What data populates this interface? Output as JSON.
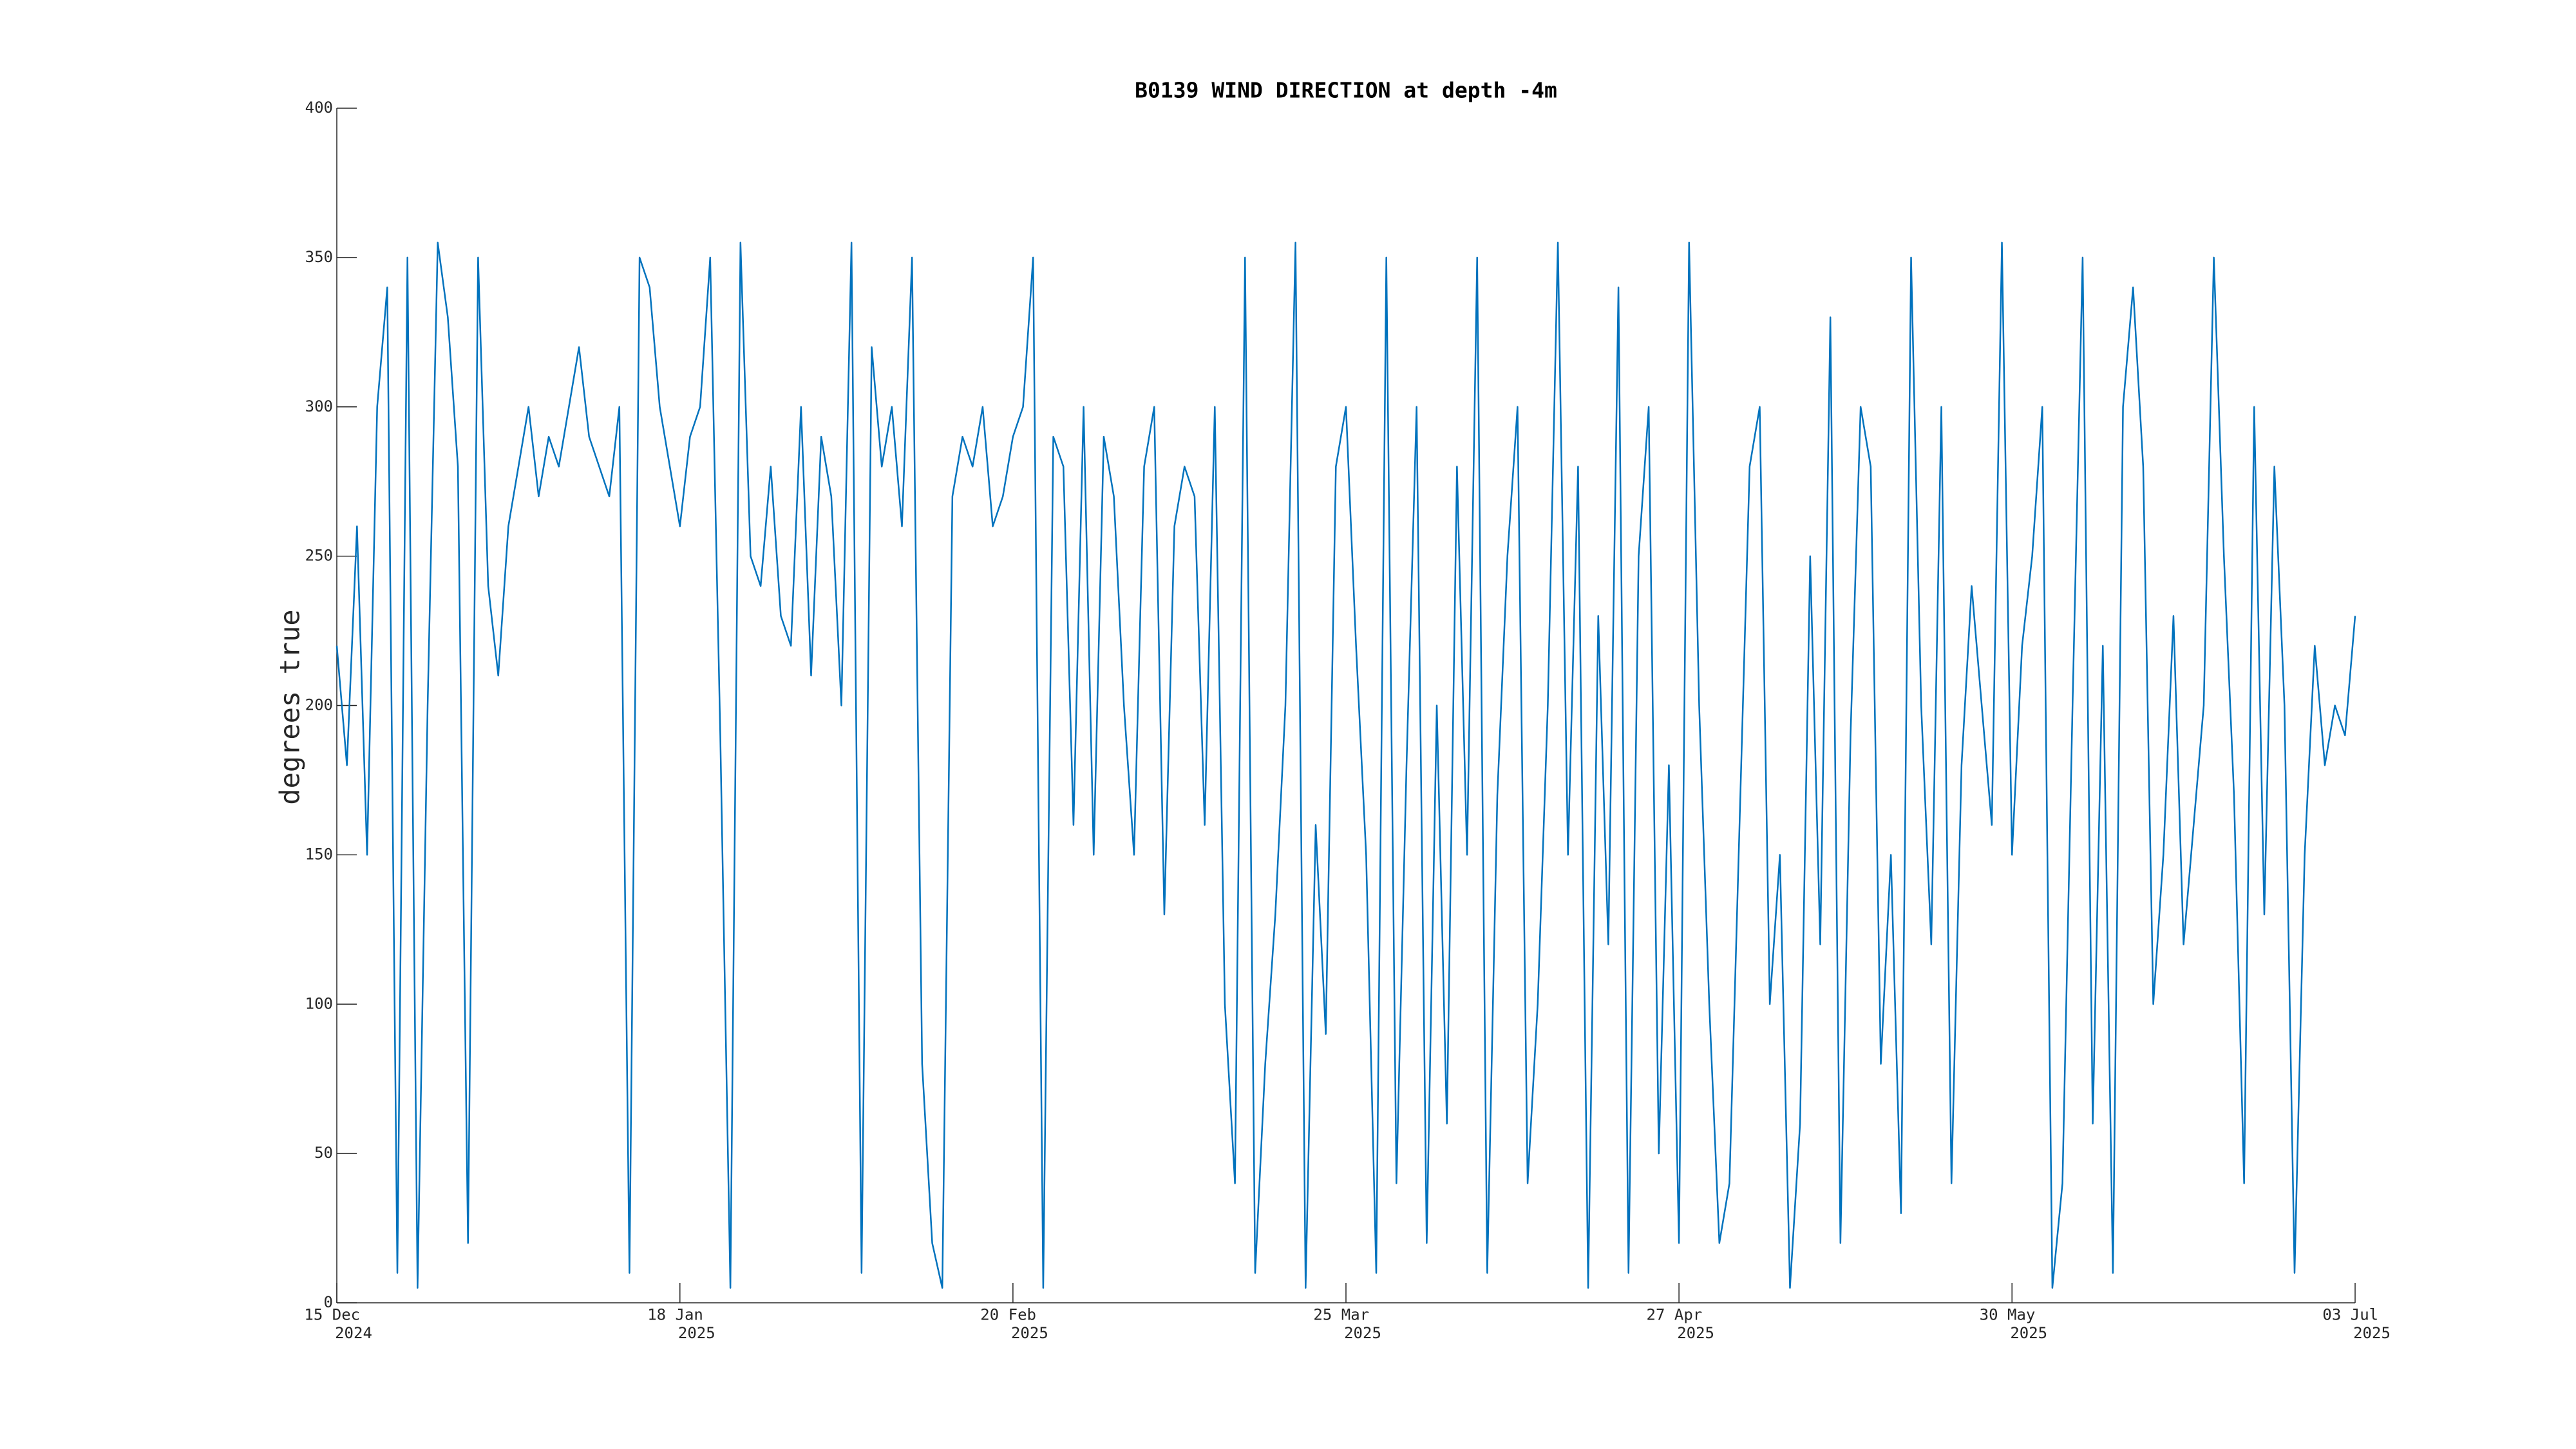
{
  "chart_data": {
    "type": "line",
    "title": "B0139 WIND DIRECTION at depth -4m",
    "y_label": "degrees true",
    "color": "#0072bd",
    "xlim": [
      "2024-12-15",
      "2025-07-03"
    ],
    "xticks": [
      {
        "value": "2024-12-15",
        "label": "15 Dec 2024"
      },
      {
        "value": "2025-01-18",
        "label": "18 Jan 2025"
      },
      {
        "value": "2025-02-20",
        "label": "20 Feb 2025"
      },
      {
        "value": "2025-03-25",
        "label": "25 Mar 2025"
      },
      {
        "value": "2025-04-27",
        "label": "27 Apr 2025"
      },
      {
        "value": "2025-05-30",
        "label": "30 May 2025"
      },
      {
        "value": "2025-07-03",
        "label": "03 Jul 2025"
      }
    ],
    "ylim": [
      0,
      400
    ],
    "yticks": [
      0,
      50,
      100,
      150,
      200,
      250,
      300,
      350,
      400
    ],
    "x": [
      "2024-12-15",
      "2024-12-16",
      "2024-12-17",
      "2024-12-18",
      "2024-12-19",
      "2024-12-20",
      "2024-12-21",
      "2024-12-22",
      "2024-12-23",
      "2024-12-24",
      "2024-12-25",
      "2024-12-26",
      "2024-12-27",
      "2024-12-28",
      "2024-12-29",
      "2024-12-30",
      "2024-12-31",
      "2025-01-01",
      "2025-01-02",
      "2025-01-03",
      "2025-01-04",
      "2025-01-05",
      "2025-01-06",
      "2025-01-07",
      "2025-01-08",
      "2025-01-09",
      "2025-01-10",
      "2025-01-11",
      "2025-01-12",
      "2025-01-13",
      "2025-01-14",
      "2025-01-15",
      "2025-01-16",
      "2025-01-17",
      "2025-01-18",
      "2025-01-19",
      "2025-01-20",
      "2025-01-21",
      "2025-01-22",
      "2025-01-23",
      "2025-01-24",
      "2025-01-25",
      "2025-01-26",
      "2025-01-27",
      "2025-01-28",
      "2025-01-29",
      "2025-01-30",
      "2025-01-31",
      "2025-02-01",
      "2025-02-02",
      "2025-02-03",
      "2025-02-04",
      "2025-02-05",
      "2025-02-06",
      "2025-02-07",
      "2025-02-08",
      "2025-02-09",
      "2025-02-10",
      "2025-02-11",
      "2025-02-12",
      "2025-02-13",
      "2025-02-14",
      "2025-02-15",
      "2025-02-16",
      "2025-02-17",
      "2025-02-18",
      "2025-02-19",
      "2025-02-20",
      "2025-02-21",
      "2025-02-22",
      "2025-02-23",
      "2025-02-24",
      "2025-02-25",
      "2025-02-26",
      "2025-02-27",
      "2025-02-28",
      "2025-03-01",
      "2025-03-02",
      "2025-03-03",
      "2025-03-04",
      "2025-03-05",
      "2025-03-06",
      "2025-03-07",
      "2025-03-08",
      "2025-03-09",
      "2025-03-10",
      "2025-03-11",
      "2025-03-12",
      "2025-03-13",
      "2025-03-14",
      "2025-03-15",
      "2025-03-16",
      "2025-03-17",
      "2025-03-18",
      "2025-03-19",
      "2025-03-20",
      "2025-03-21",
      "2025-03-22",
      "2025-03-23",
      "2025-03-24",
      "2025-03-25",
      "2025-03-26",
      "2025-03-27",
      "2025-03-28",
      "2025-03-29",
      "2025-03-30",
      "2025-03-31",
      "2025-04-01",
      "2025-04-02",
      "2025-04-03",
      "2025-04-04",
      "2025-04-05",
      "2025-04-06",
      "2025-04-07",
      "2025-04-08",
      "2025-04-09",
      "2025-04-10",
      "2025-04-11",
      "2025-04-12",
      "2025-04-13",
      "2025-04-14",
      "2025-04-15",
      "2025-04-16",
      "2025-04-17",
      "2025-04-18",
      "2025-04-19",
      "2025-04-20",
      "2025-04-21",
      "2025-04-22",
      "2025-04-23",
      "2025-04-24",
      "2025-04-25",
      "2025-04-26",
      "2025-04-27",
      "2025-04-28",
      "2025-04-29",
      "2025-04-30",
      "2025-05-01",
      "2025-05-02",
      "2025-05-03",
      "2025-05-04",
      "2025-05-05",
      "2025-05-06",
      "2025-05-07",
      "2025-05-08",
      "2025-05-09",
      "2025-05-10",
      "2025-05-11",
      "2025-05-12",
      "2025-05-13",
      "2025-05-14",
      "2025-05-15",
      "2025-05-16",
      "2025-05-17",
      "2025-05-18",
      "2025-05-19",
      "2025-05-20",
      "2025-05-21",
      "2025-05-22",
      "2025-05-23",
      "2025-05-24",
      "2025-05-25",
      "2025-05-26",
      "2025-05-27",
      "2025-05-28",
      "2025-05-29",
      "2025-05-30",
      "2025-05-31",
      "2025-06-01",
      "2025-06-02",
      "2025-06-03",
      "2025-06-04",
      "2025-06-05",
      "2025-06-06",
      "2025-06-07",
      "2025-06-08",
      "2025-06-09",
      "2025-06-10",
      "2025-06-11",
      "2025-06-12",
      "2025-06-13",
      "2025-06-14",
      "2025-06-15",
      "2025-06-16",
      "2025-06-17",
      "2025-06-18",
      "2025-06-19",
      "2025-06-20",
      "2025-06-21",
      "2025-06-22",
      "2025-06-23",
      "2025-06-24",
      "2025-06-25",
      "2025-06-26",
      "2025-06-27",
      "2025-06-28",
      "2025-06-29",
      "2025-06-30",
      "2025-07-01",
      "2025-07-02",
      "2025-07-03"
    ],
    "values": [
      220,
      180,
      260,
      150,
      300,
      340,
      10,
      350,
      5,
      200,
      355,
      330,
      280,
      20,
      350,
      240,
      210,
      260,
      280,
      300,
      270,
      290,
      280,
      300,
      320,
      290,
      280,
      270,
      300,
      10,
      350,
      340,
      300,
      280,
      260,
      290,
      300,
      350,
      190,
      5,
      355,
      250,
      240,
      280,
      230,
      220,
      300,
      210,
      290,
      270,
      200,
      355,
      10,
      320,
      280,
      300,
      260,
      350,
      80,
      20,
      5,
      270,
      290,
      280,
      300,
      260,
      270,
      290,
      300,
      350,
      5,
      290,
      280,
      160,
      300,
      150,
      290,
      270,
      200,
      150,
      280,
      300,
      130,
      260,
      280,
      270,
      160,
      300,
      100,
      40,
      350,
      10,
      80,
      130,
      200,
      355,
      5,
      160,
      90,
      280,
      300,
      220,
      150,
      10,
      350,
      40,
      180,
      300,
      20,
      200,
      60,
      280,
      150,
      350,
      10,
      170,
      250,
      300,
      40,
      100,
      200,
      355,
      150,
      280,
      5,
      230,
      120,
      340,
      10,
      250,
      300,
      50,
      180,
      20,
      355,
      200,
      100,
      20,
      40,
      160,
      280,
      300,
      100,
      150,
      5,
      60,
      250,
      120,
      330,
      20,
      190,
      300,
      280,
      80,
      150,
      30,
      350,
      200,
      120,
      300,
      40,
      180,
      240,
      200,
      160,
      355,
      150,
      220,
      250,
      300,
      5,
      40,
      200,
      350,
      60,
      220,
      10,
      300,
      340,
      280,
      100,
      150,
      230,
      120,
      160,
      200,
      350,
      250,
      170,
      40,
      300,
      130,
      280,
      200,
      10,
      150,
      220,
      180,
      200,
      190,
      230
    ]
  }
}
